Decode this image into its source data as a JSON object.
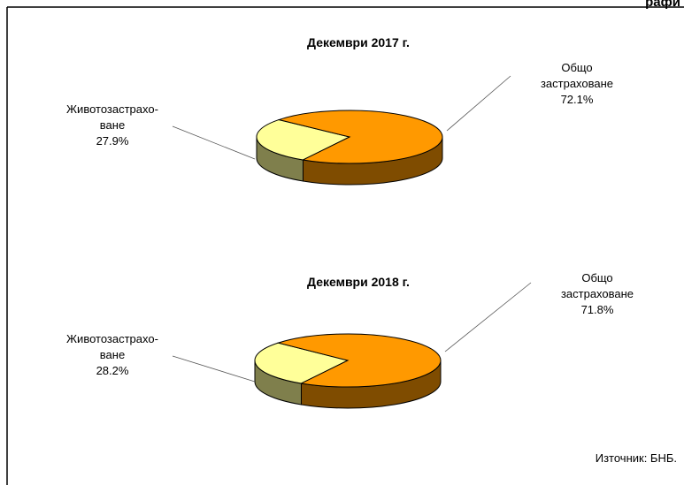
{
  "header": "рафи",
  "chart_data": [
    {
      "type": "pie",
      "title": "Декември 2017 г.",
      "categories": [
        "Животозастрахо-\nване",
        "Общо застраховане"
      ],
      "values": [
        27.9,
        72.1
      ],
      "value_labels": [
        "27.9%",
        "72.1%"
      ],
      "colors": [
        "#ffff99",
        "#ff9900"
      ]
    },
    {
      "type": "pie",
      "title": "Декември 2018 г.",
      "categories": [
        "Животозастрахо-\nване",
        "Общо застраховане"
      ],
      "values": [
        28.2,
        71.8
      ],
      "value_labels": [
        "28.2%",
        "71.8%"
      ],
      "colors": [
        "#ffff99",
        "#ff9900"
      ]
    }
  ],
  "source": "Източник: БНБ."
}
